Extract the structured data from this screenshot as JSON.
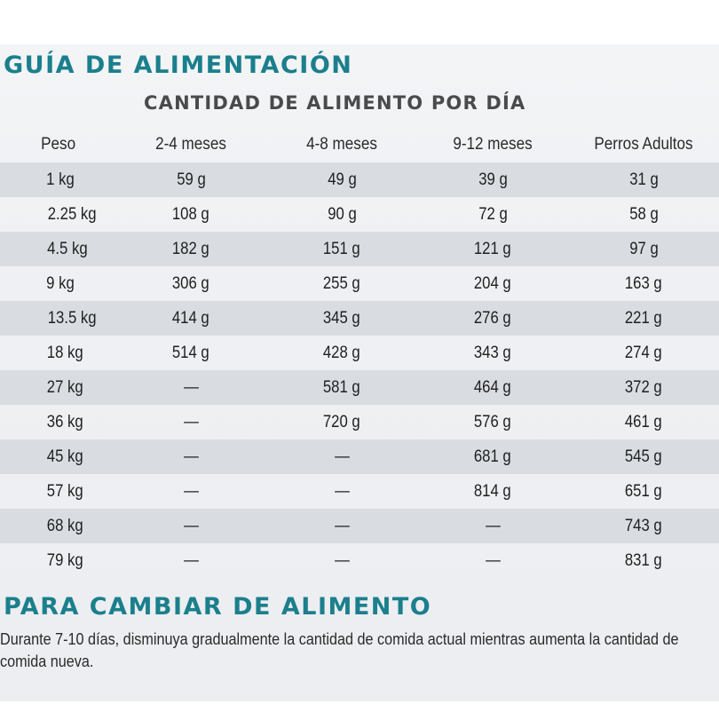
{
  "title": "GUÍA DE ALIMENTACIÓN",
  "subtitle": "CANTIDAD DE ALIMENTO POR DÍA",
  "table": {
    "headers": [
      "Peso",
      "2-4 meses",
      "4-8 meses",
      "9-12 meses",
      "Perros Adultos"
    ],
    "rows": [
      [
        "1 kg",
        "59 g",
        "49 g",
        "39 g",
        "31 g"
      ],
      [
        "2.25 kg",
        "108 g",
        "90 g",
        "72 g",
        "58 g"
      ],
      [
        "4.5 kg",
        "182 g",
        "151 g",
        "121 g",
        "97 g"
      ],
      [
        "9 kg",
        "306 g",
        "255 g",
        "204 g",
        "163 g"
      ],
      [
        "13.5 kg",
        "414 g",
        "345 g",
        "276 g",
        "221 g"
      ],
      [
        "18 kg",
        "514 g",
        "428 g",
        "343 g",
        "274 g"
      ],
      [
        "27 kg",
        "—",
        "581 g",
        "464 g",
        "372 g"
      ],
      [
        "36 kg",
        "—",
        "720 g",
        "576 g",
        "461 g"
      ],
      [
        "45 kg",
        "—",
        "—",
        "681 g",
        "545 g"
      ],
      [
        "57 kg",
        "—",
        "—",
        "814 g",
        "651 g"
      ],
      [
        "68 kg",
        "—",
        "—",
        "—",
        "743 g"
      ],
      [
        "79 kg",
        "—",
        "—",
        "—",
        "831 g"
      ]
    ]
  },
  "change_section": {
    "title": "PARA CAMBIAR DE ALIMENTO",
    "text": "Durante 7-10 días, disminuya gradualmente la cantidad de comida actual mientras aumenta la cantidad de comida nueva."
  },
  "colors": {
    "heading": "#1b7f8c",
    "row_shade": "#d9dde2",
    "background": "#eef0f3"
  }
}
